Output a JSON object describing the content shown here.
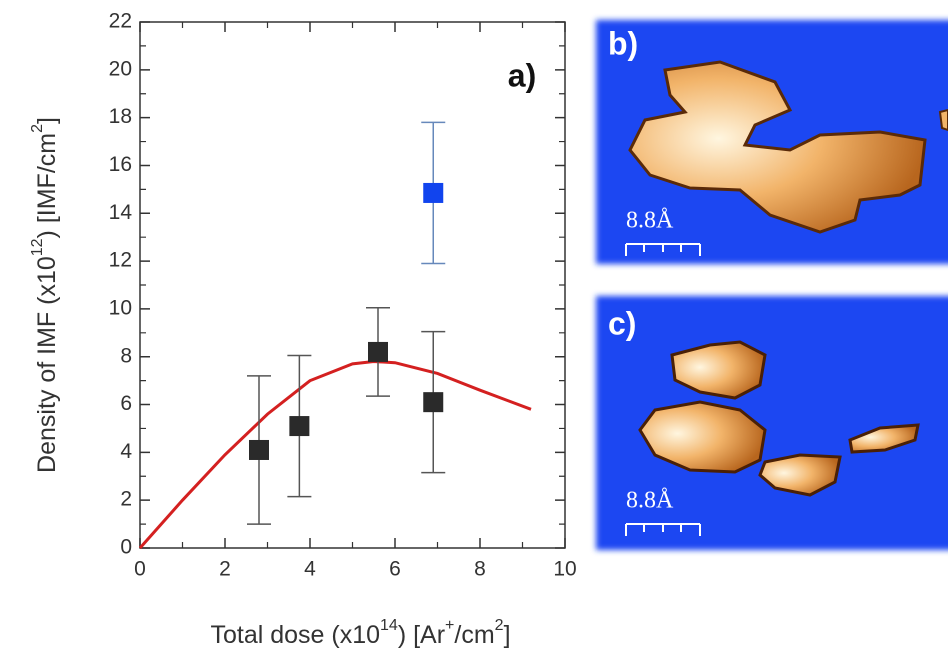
{
  "chart_data": {
    "type": "scatter",
    "title": "a)",
    "xlabel": [
      "Total dose (x10",
      "14",
      ") [Ar",
      "+",
      "/cm",
      "2",
      "]"
    ],
    "ylabel": [
      "Density of IMF (x10",
      "12",
      ") [IMF/cm",
      "2",
      "]"
    ],
    "xlim": [
      0,
      10
    ],
    "xticks": [
      0,
      2,
      4,
      6,
      8,
      10
    ],
    "xminor": [
      1,
      3,
      5,
      7,
      9
    ],
    "ylim": [
      0,
      22
    ],
    "yticks": [
      0,
      2,
      4,
      6,
      8,
      10,
      12,
      14,
      16,
      18,
      20,
      22
    ],
    "yminor": [
      1,
      3,
      5,
      7,
      9,
      11,
      13,
      15,
      17,
      19,
      21
    ],
    "series": [
      {
        "color": "#2a2a2a",
        "errcolor": "#555555",
        "x": [
          2.8,
          3.75,
          5.6,
          6.9
        ],
        "values": [
          4.1,
          5.1,
          8.2,
          6.1
        ],
        "errors": [
          3.1,
          2.95,
          1.85,
          2.95
        ]
      },
      {
        "color": "#1144ee",
        "errcolor": "#6688bb",
        "x": [
          6.9
        ],
        "values": [
          14.85
        ],
        "errors": [
          2.95
        ]
      }
    ],
    "fit": {
      "color": "#d42020",
      "x": [
        0,
        1,
        2,
        3,
        4,
        5,
        5.5,
        6,
        7,
        8,
        9.2
      ],
      "values": [
        0,
        2.0,
        3.9,
        5.6,
        7.0,
        7.7,
        7.8,
        7.75,
        7.3,
        6.6,
        5.8
      ]
    }
  },
  "panels": [
    {
      "label": "b)",
      "scale": "8.8Å"
    },
    {
      "label": "c)",
      "scale": "8.8Å"
    }
  ]
}
